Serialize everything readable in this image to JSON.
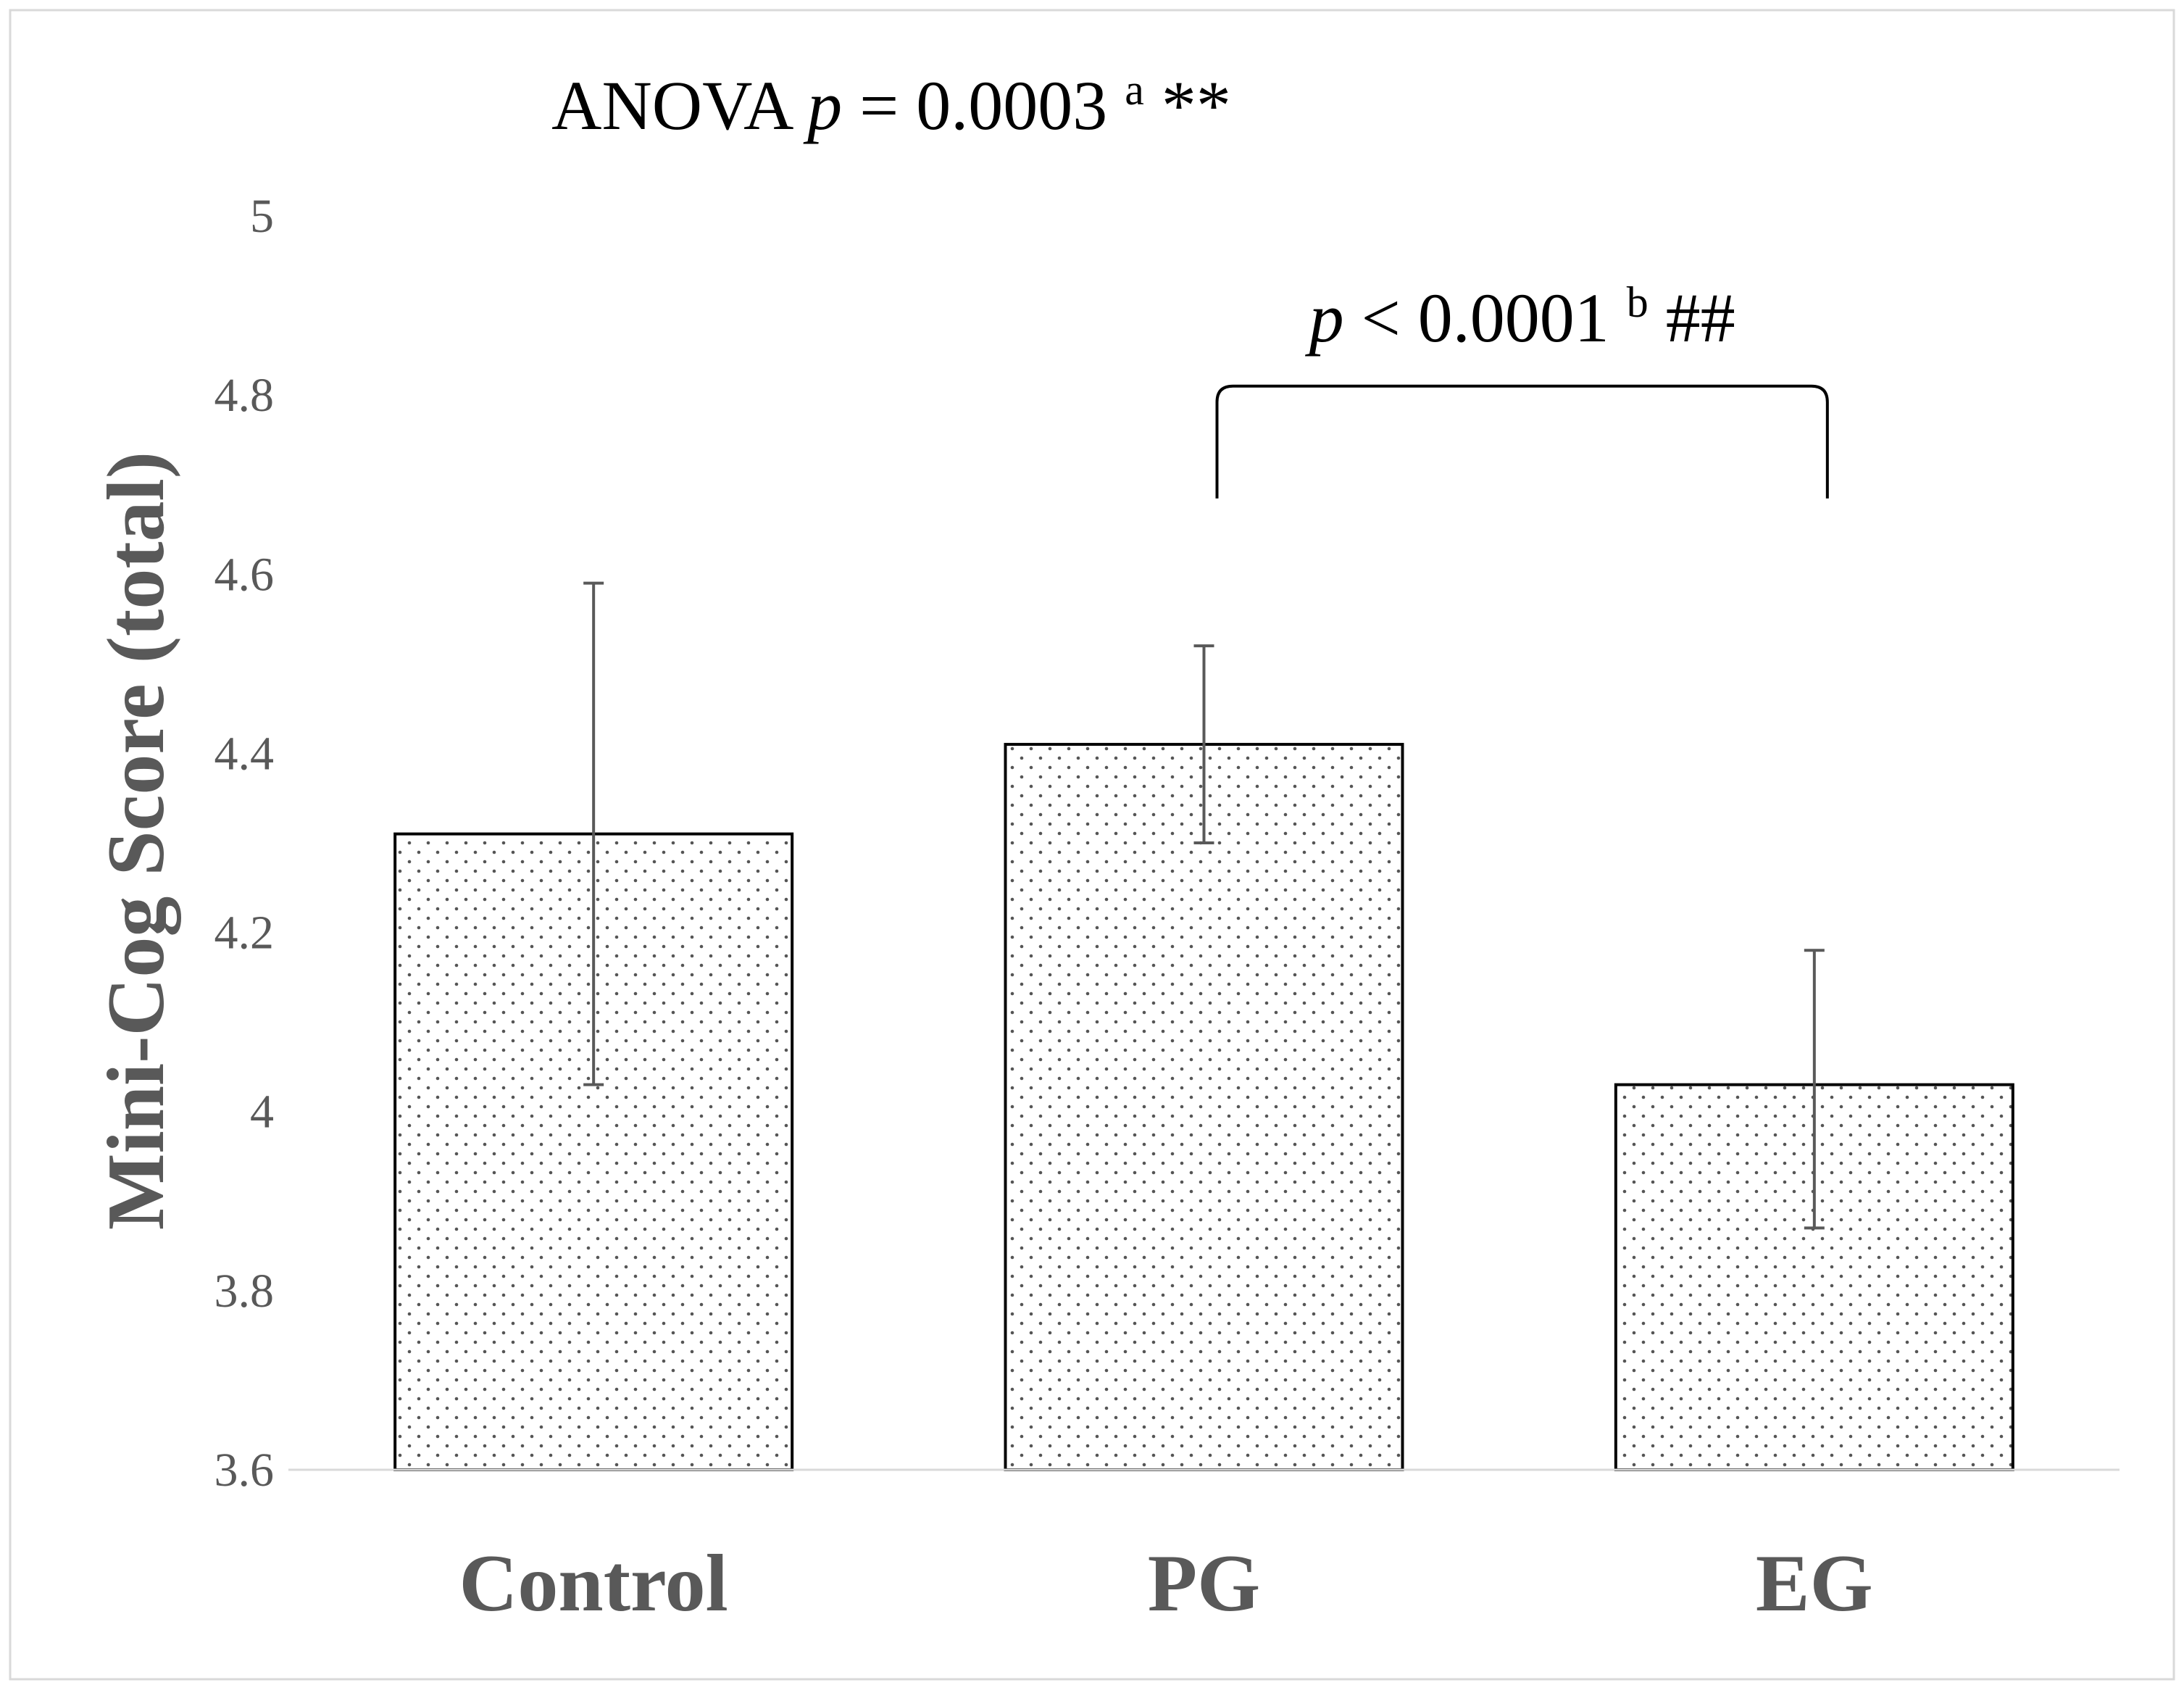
{
  "chart_data": {
    "type": "bar",
    "title_parts": {
      "prefix": "ANOVA ",
      "p_symbol": "p",
      "relation": " = 0.0003 ",
      "superscript": "a",
      "suffix": " **"
    },
    "ylabel": "Mini-Cog Score (total)",
    "xlabel": "",
    "ylim": [
      3.6,
      5
    ],
    "yticks": [
      3.6,
      3.8,
      4,
      4.2,
      4.4,
      4.6,
      4.8,
      5
    ],
    "ytick_labels": [
      "3.6",
      "3.8",
      "4",
      "4.2",
      "4.4",
      "4.6",
      "4.8",
      "5"
    ],
    "grid": false,
    "categories": [
      "Control",
      "PG",
      "EG"
    ],
    "values": [
      4.31,
      4.41,
      4.03
    ],
    "error_bars": [
      {
        "low": 4.03,
        "high": 4.59
      },
      {
        "low": 4.3,
        "high": 4.52
      },
      {
        "low": 3.87,
        "high": 4.18
      }
    ],
    "significance": {
      "from": "PG",
      "to": "EG",
      "level": 4.81,
      "p_symbol": "p",
      "relation": " < 0.0001 ",
      "superscript": "b",
      "suffix": " ##"
    },
    "bar_fill_pattern": "dotted",
    "colors": {
      "bar_stroke": "#000000",
      "dot": "#555555",
      "error_bar": "#595959",
      "axis_line": "#d9d9d9",
      "tick_text": "#595959",
      "category_text": "#595959",
      "ylabel_text": "#595959",
      "title_text": "#000000",
      "frame": "#d9d9d9"
    }
  }
}
